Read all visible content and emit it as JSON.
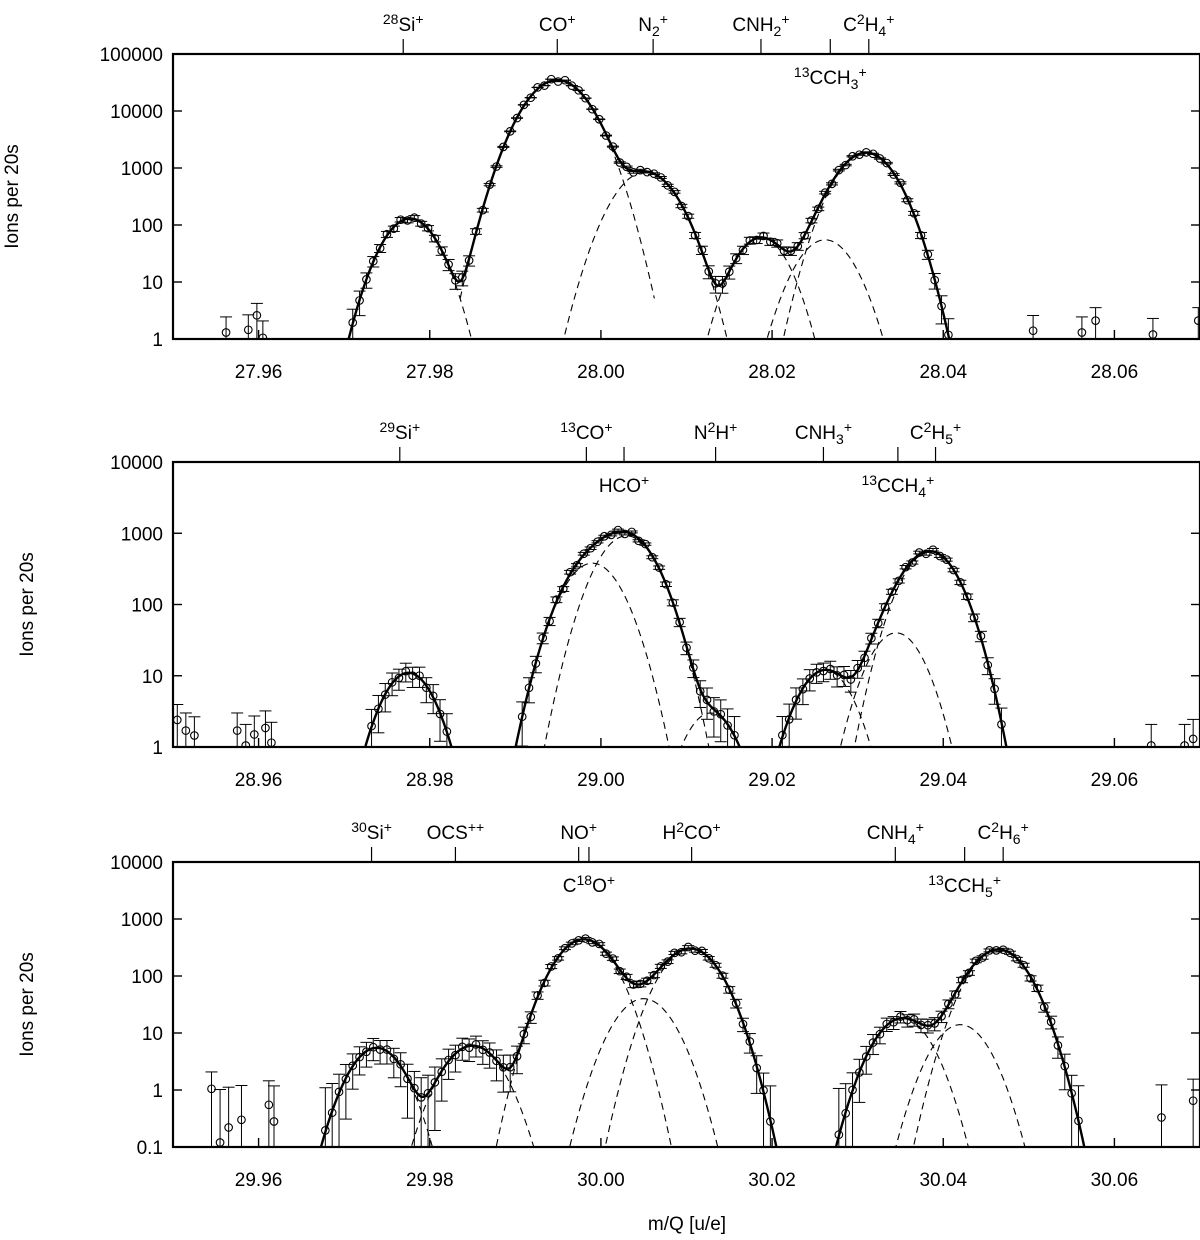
{
  "figure": {
    "xlabel": "m/Q [u/e]"
  },
  "chart_data": [
    {
      "type": "line",
      "yscale": "log",
      "ylabel": "Ions per 20s",
      "xlim": [
        27.95,
        28.07
      ],
      "ylim": [
        1,
        100000
      ],
      "xticks": [
        27.96,
        27.98,
        28.0,
        28.02,
        28.04,
        28.06
      ],
      "xtick_labels": [
        "27.96",
        "27.98",
        "28.00",
        "28.02",
        "28.04",
        "28.06"
      ],
      "yticks": [
        1,
        10,
        100,
        1000,
        10000,
        100000
      ],
      "ytick_labels": [
        "1",
        "10",
        "100",
        "1000",
        "10000",
        "100000"
      ],
      "species": [
        {
          "mass": 27.9769,
          "label": "28Si+",
          "row": 0
        },
        {
          "mass": 27.9949,
          "label": "CO+",
          "row": 0
        },
        {
          "mass": 28.0061,
          "label": "N2+",
          "row": 0
        },
        {
          "mass": 28.0187,
          "label": "CNH2+",
          "row": 0
        },
        {
          "mass": 28.0313,
          "label": "C2H4+",
          "row": 0
        },
        {
          "mass": 28.0268,
          "label": "13CCH3+",
          "row": 1
        }
      ],
      "components": [
        {
          "name": "28Si+",
          "center": 27.9777,
          "peak": 130,
          "width": 0.0023
        },
        {
          "name": "CO+",
          "center": 27.9949,
          "peak": 35000,
          "width": 0.0027
        },
        {
          "name": "N2+",
          "center": 28.0052,
          "peak": 850,
          "width": 0.0026
        },
        {
          "name": "CNH2+",
          "center": 28.0187,
          "peak": 60,
          "width": 0.0022
        },
        {
          "name": "13CCH3+",
          "center": 28.0262,
          "peak": 55,
          "width": 0.0024
        },
        {
          "name": "C2H4+",
          "center": 28.031,
          "peak": 1850,
          "width": 0.0025
        }
      ],
      "stray_points": [
        [
          27.9562,
          1.3
        ],
        [
          27.9588,
          1.45
        ],
        [
          27.9598,
          2.6
        ],
        [
          27.9605,
          1.05
        ],
        [
          28.0505,
          1.4
        ],
        [
          28.0562,
          1.3
        ],
        [
          28.0578,
          2.1
        ],
        [
          28.0645,
          1.2
        ],
        [
          28.0698,
          2.1
        ]
      ],
      "x_data_range": [
        27.963,
        28.0485
      ]
    },
    {
      "type": "line",
      "yscale": "log",
      "ylabel": "Ions per 20s",
      "xlim": [
        28.95,
        29.07
      ],
      "ylim": [
        1,
        10000
      ],
      "xticks": [
        28.96,
        28.98,
        29.0,
        29.02,
        29.04,
        29.06
      ],
      "xtick_labels": [
        "28.96",
        "28.98",
        "29.00",
        "29.02",
        "29.04",
        "29.06"
      ],
      "yticks": [
        1,
        10,
        100,
        1000,
        10000
      ],
      "ytick_labels": [
        "1",
        "10",
        "100",
        "1000",
        "10000"
      ],
      "species": [
        {
          "mass": 28.9765,
          "label": "29Si+",
          "row": 0
        },
        {
          "mass": 28.9983,
          "label": "13CO+",
          "row": 0
        },
        {
          "mass": 29.0134,
          "label": "N2H+",
          "row": 0
        },
        {
          "mass": 29.026,
          "label": "CNH3+",
          "row": 0
        },
        {
          "mass": 29.0391,
          "label": "C2H5+",
          "row": 0
        },
        {
          "mass": 29.0027,
          "label": "HCO+",
          "row": 1
        },
        {
          "mass": 29.0347,
          "label": "13CCH4+",
          "row": 1
        }
      ],
      "components": [
        {
          "name": "29Si+",
          "center": 28.9775,
          "peak": 11,
          "width": 0.0023
        },
        {
          "name": "13CO+",
          "center": 28.999,
          "peak": 380,
          "width": 0.0026
        },
        {
          "name": "HCO+",
          "center": 29.003,
          "peak": 920,
          "width": 0.0026
        },
        {
          "name": "N2H+",
          "center": 29.0128,
          "peak": 3,
          "width": 0.0023
        },
        {
          "name": "CNH3+",
          "center": 29.0262,
          "peak": 12,
          "width": 0.0024
        },
        {
          "name": "13CCH4+",
          "center": 29.0345,
          "peak": 40,
          "width": 0.0024
        },
        {
          "name": "C2H5+",
          "center": 29.0385,
          "peak": 550,
          "width": 0.0025
        }
      ],
      "stray_points": [
        [
          28.9505,
          2.4
        ],
        [
          28.9515,
          1.7
        ],
        [
          28.9525,
          1.45
        ],
        [
          28.9575,
          1.7
        ],
        [
          28.9585,
          1.05
        ],
        [
          28.9595,
          1.5
        ],
        [
          28.9608,
          1.85
        ],
        [
          28.9615,
          1.15
        ],
        [
          29.0643,
          1.05
        ],
        [
          29.0682,
          1.05
        ],
        [
          29.0692,
          1.3
        ]
      ],
      "x_data_range": [
        28.97,
        29.0585
      ]
    },
    {
      "type": "line",
      "yscale": "log",
      "ylabel": "Ions per 20s",
      "xlabel": "m/Q [u/e]",
      "xlim": [
        29.95,
        30.07
      ],
      "ylim": [
        0.1,
        10000
      ],
      "xticks": [
        29.96,
        29.98,
        30.0,
        30.02,
        30.04,
        30.06
      ],
      "xtick_labels": [
        "29.96",
        "29.98",
        "30.00",
        "30.02",
        "30.04",
        "30.06"
      ],
      "yticks": [
        0.1,
        1,
        10,
        100,
        1000,
        10000
      ],
      "ytick_labels": [
        "0.1",
        "1",
        "10",
        "100",
        "1000",
        "10000"
      ],
      "species": [
        {
          "mass": 29.9732,
          "label": "30Si+",
          "row": 0
        },
        {
          "mass": 29.983,
          "label": "OCS++",
          "row": 0
        },
        {
          "mass": 29.9974,
          "label": "NO+",
          "row": 0
        },
        {
          "mass": 30.0106,
          "label": "H2CO+",
          "row": 0
        },
        {
          "mass": 30.0344,
          "label": "CNH4+",
          "row": 0
        },
        {
          "mass": 30.047,
          "label": "C2H6+",
          "row": 0
        },
        {
          "mass": 29.9986,
          "label": "C18O+",
          "row": 1
        },
        {
          "mass": 30.0425,
          "label": "13CCH5+",
          "row": 1
        }
      ],
      "components": [
        {
          "name": "30Si+",
          "center": 29.9738,
          "peak": 5.5,
          "width": 0.0023
        },
        {
          "name": "OCS++",
          "center": 29.985,
          "peak": 6,
          "width": 0.0025
        },
        {
          "name": "NO+",
          "center": 29.998,
          "peak": 440,
          "width": 0.0025
        },
        {
          "name": "C18O+",
          "center": 30.005,
          "peak": 40,
          "width": 0.0025
        },
        {
          "name": "H2CO+",
          "center": 30.0105,
          "peak": 300,
          "width": 0.0025
        },
        {
          "name": "CNH4+",
          "center": 30.0352,
          "peak": 18,
          "width": 0.0024
        },
        {
          "name": "13CCH5+",
          "center": 30.042,
          "peak": 14,
          "width": 0.0024
        },
        {
          "name": "C2H6+",
          "center": 30.0465,
          "peak": 290,
          "width": 0.0025
        }
      ],
      "stray_points": [
        [
          29.9545,
          1.05
        ],
        [
          29.9555,
          0.12
        ],
        [
          29.9565,
          0.22
        ],
        [
          29.958,
          0.3
        ],
        [
          29.9612,
          0.55
        ],
        [
          29.9618,
          0.28
        ],
        [
          30.0655,
          0.33
        ],
        [
          30.0692,
          0.65
        ]
      ],
      "x_data_range": [
        29.963,
        30.0645
      ]
    }
  ]
}
